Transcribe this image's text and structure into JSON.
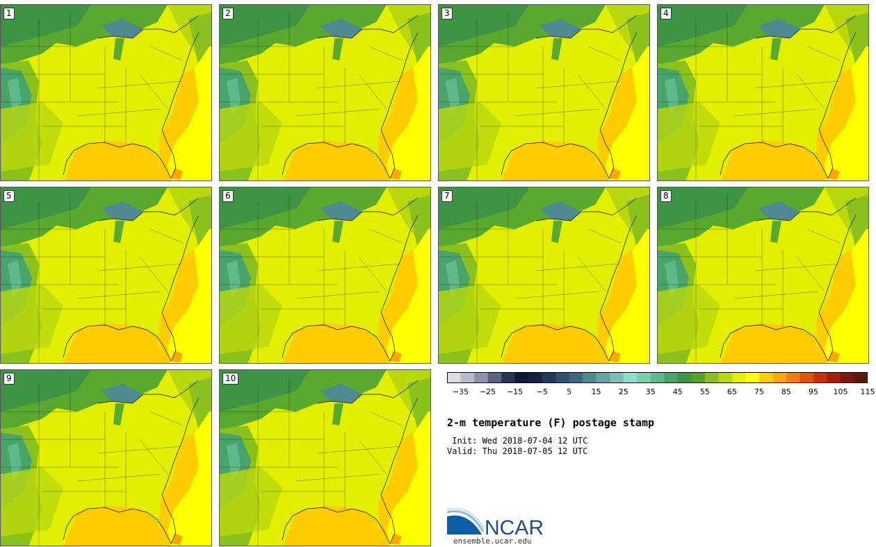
{
  "panels": [
    {
      "label": "1"
    },
    {
      "label": "2"
    },
    {
      "label": "3"
    },
    {
      "label": "4"
    },
    {
      "label": "5"
    },
    {
      "label": "6"
    },
    {
      "label": "7"
    },
    {
      "label": "8"
    },
    {
      "label": "9"
    },
    {
      "label": "10"
    }
  ],
  "colorbar": {
    "colors": [
      "#dcdde4",
      "#b9bccb",
      "#8f93aa",
      "#5c6584",
      "#2a3355",
      "#0f1838",
      "#16223f",
      "#22385a",
      "#2e4f6e",
      "#3b6980",
      "#4f8992",
      "#67a3a6",
      "#7dbdb6",
      "#92dccd",
      "#7ccfb0",
      "#5fb98a",
      "#49a46a",
      "#3e9444",
      "#56a329",
      "#8ac11d",
      "#b9d80e",
      "#e6ec00",
      "#ffff00",
      "#ffcc00",
      "#ffa800",
      "#f57d00",
      "#e45200",
      "#ca2e03",
      "#a51f07",
      "#7d1a0d",
      "#5c1a0d"
    ],
    "ticks": [
      "−35",
      "−25",
      "−15",
      "−5",
      "5",
      "15",
      "25",
      "35",
      "45",
      "55",
      "65",
      "75",
      "85",
      "95",
      "105",
      "115"
    ]
  },
  "title": "2-m temperature (F) postage stamp",
  "init_line": " Init: Wed 2018-07-04 12 UTC",
  "valid_line": "Valid: Thu 2018-07-05 12 UTC",
  "logo_text": "NCAR",
  "logo_url": "ensemble.ucar.edu"
}
